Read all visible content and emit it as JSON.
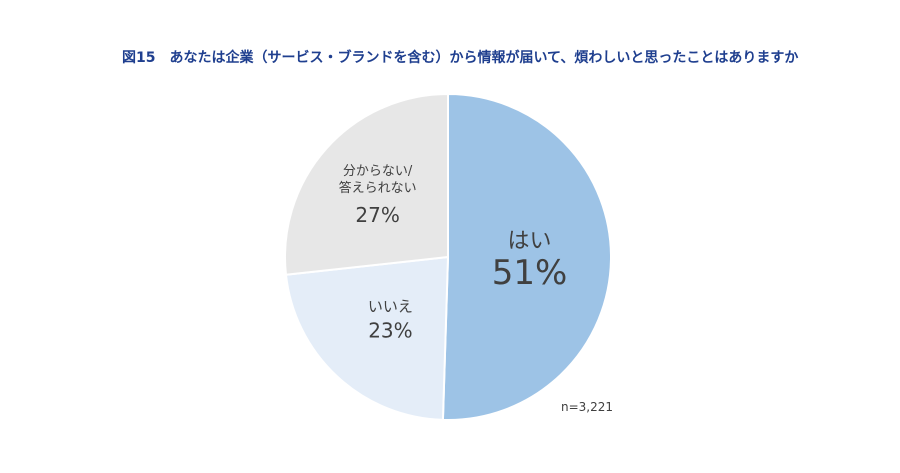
{
  "chart_data": {
    "type": "pie",
    "title": "図15　あなたは企業（サービス・ブランドを含む）から情報が届いて、煩わしいと思ったことはありますか",
    "slices": [
      {
        "name": "はい",
        "label_lines": [
          "はい"
        ],
        "value": 51,
        "value_label": "51%",
        "color": "#9dc3e6"
      },
      {
        "name": "いいえ",
        "label_lines": [
          "いいえ"
        ],
        "value": 23,
        "value_label": "23%",
        "color": "#e4edf8"
      },
      {
        "name": "分からない/答えられない",
        "label_lines": [
          "分からない/",
          "答えられない"
        ],
        "value": 27,
        "value_label": "27%",
        "color": "#e7e7e7"
      }
    ],
    "start_angle": "12 o'clock",
    "direction": "clockwise",
    "note": "n=3,221"
  }
}
